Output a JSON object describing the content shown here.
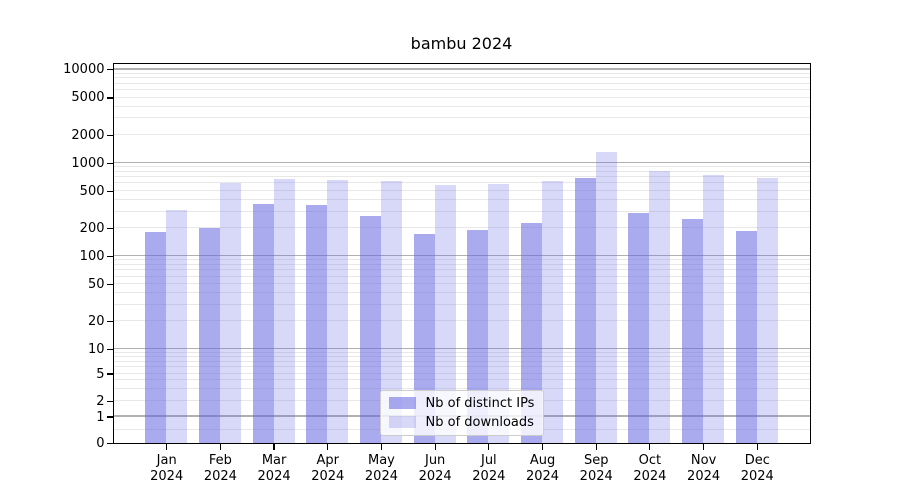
{
  "title": "bambu 2024",
  "colors": {
    "bar_base": "#6464e2",
    "distinct_ips_fill": "rgba(100,100,226,0.55)",
    "downloads_fill": "rgba(100,100,226,0.25)",
    "major_grid": "#b0b0b0",
    "minor_grid": "#e8e8e8",
    "axis": "#000000",
    "legend_border": "#cccccc"
  },
  "chart_data": {
    "type": "bar",
    "title": "bambu 2024",
    "categories": [
      "Jan",
      "Feb",
      "Mar",
      "Apr",
      "May",
      "Jun",
      "Jul",
      "Aug",
      "Sep",
      "Oct",
      "Nov",
      "Dec"
    ],
    "year_label": "2024",
    "series": [
      {
        "name": "Nb of distinct IPs",
        "color": "rgba(100,100,226,0.55)",
        "values": [
          178,
          195,
          358,
          344,
          264,
          169,
          188,
          222,
          670,
          289,
          246,
          185
        ]
      },
      {
        "name": "Nb of downloads",
        "color": "rgba(100,100,226,0.25)",
        "values": [
          305,
          600,
          653,
          642,
          627,
          567,
          581,
          622,
          1295,
          802,
          721,
          681
        ]
      }
    ],
    "xlabel": "",
    "ylabel": "",
    "yscale": "log-like with 0 baseline",
    "y_ticks": [
      0,
      1,
      2,
      5,
      10,
      20,
      50,
      100,
      200,
      500,
      1000,
      2000,
      5000,
      10000
    ],
    "ylim": [
      0,
      12000
    ],
    "grid": true,
    "legend_position": "lower center"
  }
}
